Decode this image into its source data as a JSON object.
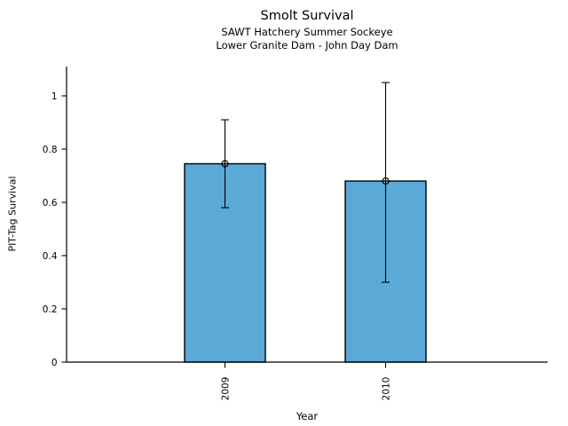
{
  "chart_data": {
    "type": "bar",
    "title": "Smolt Survival",
    "subtitle_lines": [
      "SAWT Hatchery Summer Sockeye",
      "Lower Granite Dam - John Day Dam"
    ],
    "xlabel": "Year",
    "ylabel": "PIT-Tag Survival",
    "categories": [
      "2009",
      "2010"
    ],
    "values": [
      0.745,
      0.68
    ],
    "error_low": [
      0.58,
      0.3
    ],
    "error_high": [
      0.91,
      1.05
    ],
    "ytick_labels": [
      "0",
      "0.2",
      "0.4",
      "0.6",
      "0.8",
      "1"
    ],
    "ytick_values": [
      0,
      0.2,
      0.4,
      0.6,
      0.8,
      1
    ],
    "ylim": [
      0,
      1.11
    ],
    "grid": false,
    "legend": null,
    "marker": "open-circle",
    "bar_color": "#5BA9D6",
    "edge_color": "#000000",
    "background_color": "#FFFFFF",
    "x_tick_label_rotation_deg": 90
  }
}
